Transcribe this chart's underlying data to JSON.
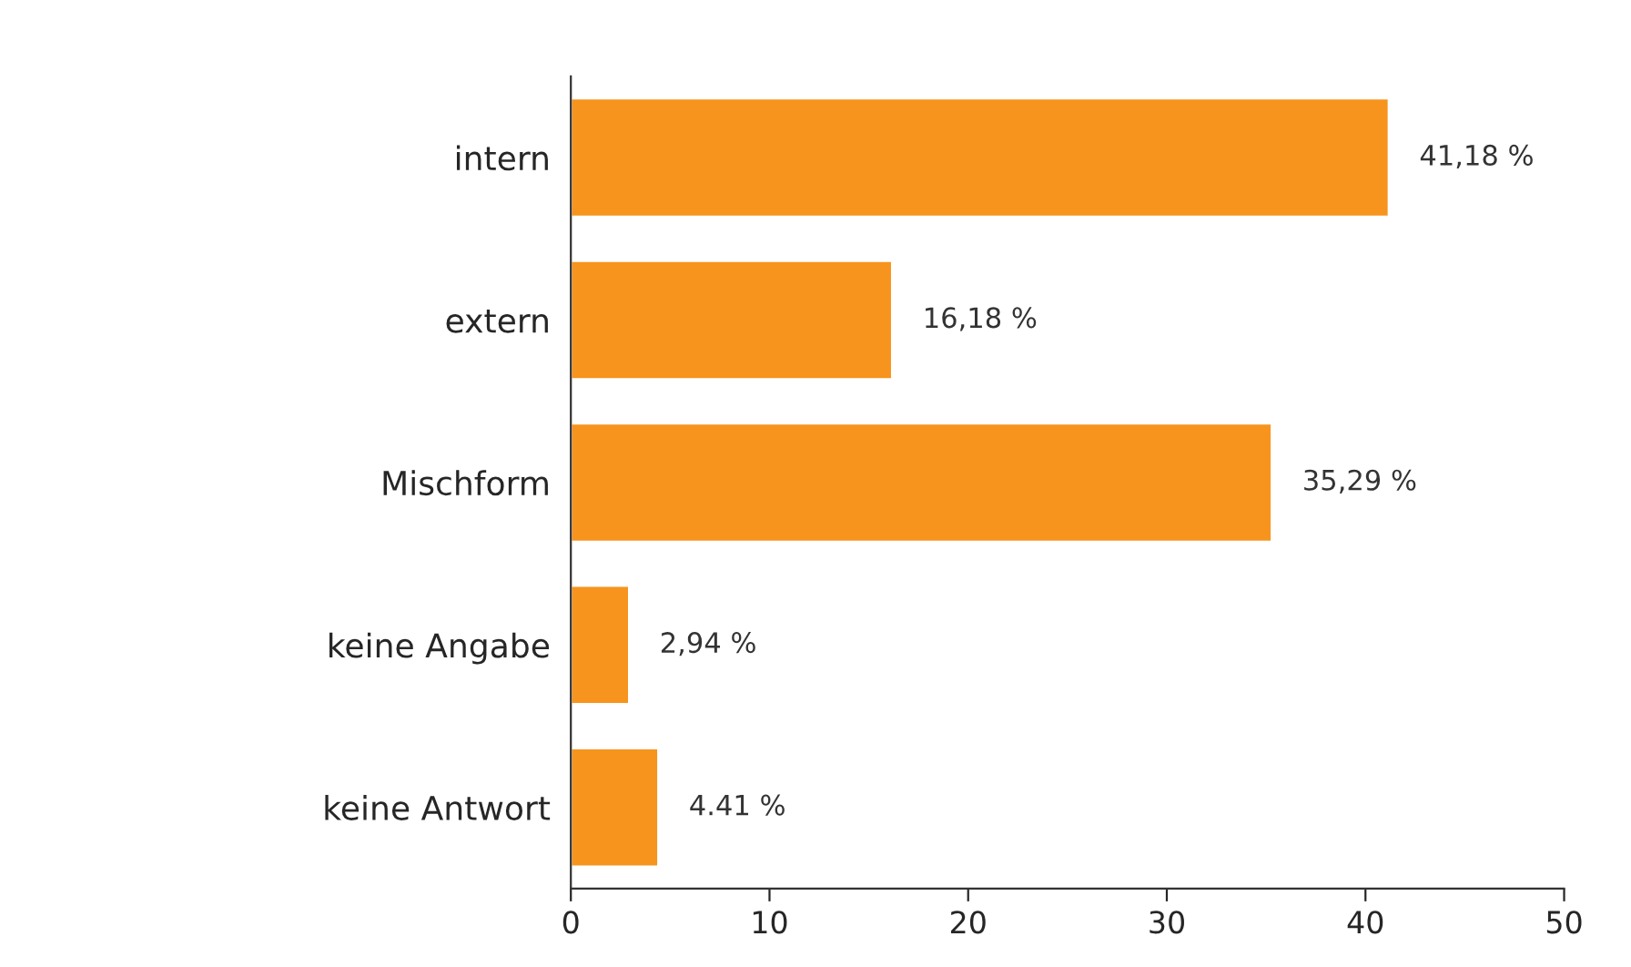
{
  "chart_data": {
    "type": "bar",
    "orientation": "horizontal",
    "categories": [
      "intern",
      "extern",
      "Mischform",
      "keine Angabe",
      "keine Antwort"
    ],
    "values": [
      41.18,
      16.18,
      35.29,
      2.94,
      4.41
    ],
    "value_labels": [
      "41,18 %",
      "16,18 %",
      "35,29 %",
      "2,94 %",
      "4.41 %"
    ],
    "color": "#f7941d",
    "xlim": [
      0,
      50
    ],
    "xticks": [
      0,
      10,
      20,
      30,
      40,
      50
    ],
    "grid": false
  }
}
